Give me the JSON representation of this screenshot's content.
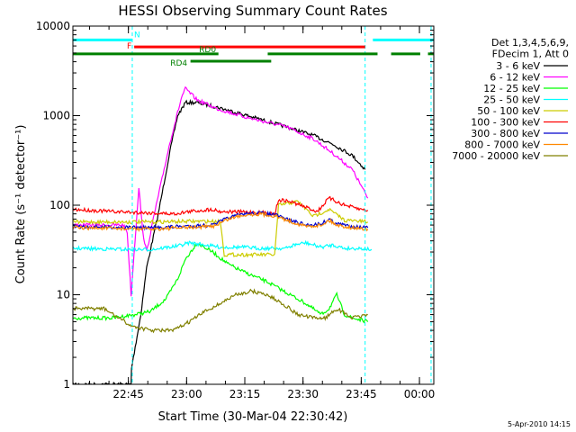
{
  "chart_data": {
    "type": "line",
    "title": "HESSI Observing Summary Count Rates",
    "xlabel": "Start Time (30-Mar-04 22:30:42)",
    "ylabel": "Count Rate (s⁻¹ detector⁻¹)",
    "yscale": "log",
    "ylim": [
      1,
      10000
    ],
    "xlim": [
      0,
      93
    ],
    "x_unit": "minutes after 22:30:42",
    "y_ticks": [
      {
        "value": 1,
        "label": "1"
      },
      {
        "value": 10,
        "label": "10"
      },
      {
        "value": 100,
        "label": "100"
      },
      {
        "value": 1000,
        "label": "1000"
      },
      {
        "value": 10000,
        "label": "10000"
      }
    ],
    "x_ticks": [
      {
        "value": 14.3,
        "label": "22:45"
      },
      {
        "value": 29.3,
        "label": "23:00"
      },
      {
        "value": 44.3,
        "label": "23:15"
      },
      {
        "value": 59.3,
        "label": "23:30"
      },
      {
        "value": 74.3,
        "label": "23:45"
      },
      {
        "value": 89.3,
        "label": "00:00"
      }
    ],
    "legend_header": [
      "Det 1,3,4,5,6,9,",
      "FDecim 1, Att 0"
    ],
    "legend_placement": "right",
    "series": [
      {
        "name": "3 - 6 keV",
        "color": "#000000",
        "x": [
          0,
          15,
          15.1,
          17.5,
          19,
          22,
          25,
          27,
          29,
          32,
          37,
          45,
          55,
          62,
          67,
          72,
          75.3
        ],
        "y": [
          1,
          1,
          1.5,
          6,
          20,
          80,
          400,
          1000,
          1400,
          1400,
          1250,
          1000,
          750,
          600,
          480,
          360,
          250
        ]
      },
      {
        "name": "6 - 12 keV",
        "color": "#ff00ff",
        "x": [
          0,
          13,
          14,
          15,
          16,
          17,
          18,
          19,
          21,
          25,
          28,
          29,
          32,
          37,
          45,
          55,
          62,
          67,
          72,
          76
        ],
        "y": [
          60,
          60,
          50,
          10,
          40,
          160,
          50,
          30,
          80,
          500,
          1600,
          2000,
          1500,
          1200,
          950,
          750,
          550,
          380,
          250,
          120
        ]
      },
      {
        "name": "12 - 25 keV",
        "color": "#00ff00",
        "x": [
          0,
          10,
          16,
          20,
          24,
          27,
          29,
          32,
          36,
          40,
          44,
          50,
          56,
          60,
          64,
          66,
          68,
          70,
          72,
          76
        ],
        "y": [
          5.5,
          5.5,
          6,
          6.5,
          9,
          15,
          25,
          38,
          30,
          22,
          18,
          14,
          10,
          8,
          6,
          7,
          10,
          6,
          5.5,
          5
        ]
      },
      {
        "name": "25 - 50 keV",
        "color": "#00ffff",
        "x": [
          0,
          15,
          20,
          27,
          30,
          34,
          38,
          44,
          48,
          52,
          55,
          57,
          60,
          64,
          67,
          70,
          74,
          77
        ],
        "y": [
          33,
          32,
          32,
          35,
          38,
          36,
          34,
          34,
          33,
          33,
          33,
          36,
          38,
          34,
          36,
          33,
          33,
          32
        ]
      },
      {
        "name": "50 - 100 keV",
        "color": "#cccc00",
        "x": [
          0,
          10,
          20,
          30,
          38,
          39,
          52,
          53,
          58,
          62,
          66,
          70,
          76
        ],
        "y": [
          65,
          65,
          65,
          66,
          66,
          28,
          28,
          100,
          110,
          75,
          90,
          68,
          65
        ]
      },
      {
        "name": "100 - 300 keV",
        "color": "#ff0000",
        "x": [
          0,
          10,
          20,
          26,
          30,
          36,
          38,
          44,
          50,
          52,
          53,
          56,
          60,
          63,
          66,
          70,
          74,
          76
        ],
        "y": [
          90,
          85,
          82,
          80,
          85,
          90,
          85,
          84,
          82,
          80,
          115,
          110,
          95,
          85,
          120,
          100,
          90,
          88
        ]
      },
      {
        "name": "300 - 800 keV",
        "color": "#0000cc",
        "x": [
          0,
          20,
          36,
          40,
          44,
          48,
          52,
          56,
          60,
          64,
          66,
          68,
          72,
          76
        ],
        "y": [
          58,
          56,
          60,
          72,
          80,
          82,
          78,
          68,
          60,
          62,
          70,
          62,
          58,
          56
        ]
      },
      {
        "name": "800 - 7000 keV",
        "color": "#ff8800",
        "x": [
          0,
          20,
          36,
          40,
          44,
          48,
          52,
          56,
          60,
          64,
          66,
          68,
          72,
          76
        ],
        "y": [
          56,
          54,
          58,
          70,
          78,
          80,
          76,
          66,
          58,
          60,
          68,
          60,
          56,
          54
        ]
      },
      {
        "name": "7000 - 20000 keV",
        "color": "#808000",
        "x": [
          0,
          8,
          15,
          20,
          26,
          30,
          34,
          38,
          42,
          46,
          50,
          54,
          58,
          62,
          65,
          68,
          72,
          76
        ],
        "y": [
          7,
          7,
          4.5,
          4,
          4,
          5,
          6.5,
          8,
          10,
          11,
          10,
          8,
          6,
          5.5,
          5.5,
          7,
          5.5,
          6
        ]
      }
    ],
    "state_bars": [
      {
        "label": "N",
        "color": "#00ffff",
        "level": 7000,
        "intervals": [
          [
            0,
            15.3
          ],
          [
            77.3,
            93
          ]
        ]
      },
      {
        "label": "F",
        "color": "#ff0000",
        "level": 5850,
        "intervals": [
          [
            15.8,
            75.3
          ]
        ]
      },
      {
        "label": "RD0",
        "color": "#008000",
        "level": 4900,
        "intervals": [
          [
            0,
            37.5
          ],
          [
            50.2,
            78.5
          ],
          [
            82,
            89.5
          ],
          [
            91.5,
            93
          ]
        ]
      },
      {
        "label": "RD4",
        "color": "#008000",
        "level": 4050,
        "intervals": [
          [
            30.3,
            51.1
          ]
        ]
      }
    ],
    "dashed_lines": [
      {
        "color": "#00ffff",
        "x": 15.3
      },
      {
        "color": "#00ffff",
        "x": 75.3
      },
      {
        "color": "#00ffff",
        "x": 92.3
      }
    ]
  },
  "footer": {
    "date_stamp": "5-Apr-2010 14:15"
  }
}
